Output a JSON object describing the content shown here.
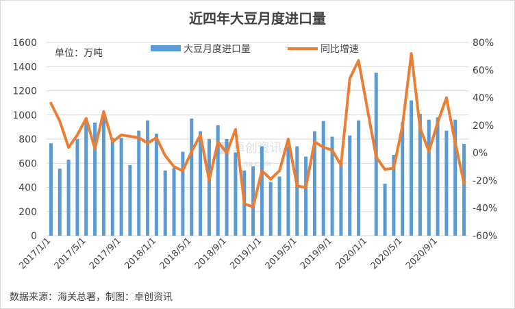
{
  "chart_data": {
    "type": "bar+line",
    "title": "近四年大豆月度进口量",
    "unit_label": "单位：万吨",
    "source": "数据来源：海关总署，制图：卓创资讯",
    "watermark": "卓创资讯",
    "watermark_sub": "SCI99.COM",
    "colors": {
      "bar": "#5b9bd5",
      "line": "#ed7d31"
    },
    "ylim_left": [
      0,
      1600
    ],
    "yticks_left": [
      "0",
      "200",
      "400",
      "600",
      "800",
      "1000",
      "1200",
      "1400",
      "1600"
    ],
    "ylim_right": [
      -60,
      80
    ],
    "yticks_right": [
      "-60%",
      "-40%",
      "-20%",
      "0%",
      "20%",
      "40%",
      "60%",
      "80%"
    ],
    "x_tick_labels": [
      {
        "index": 0,
        "label": "2017/1/1"
      },
      {
        "index": 4,
        "label": "2017/5/1"
      },
      {
        "index": 8,
        "label": "2017/9/1"
      },
      {
        "index": 12,
        "label": "2018/1/1"
      },
      {
        "index": 16,
        "label": "2018/5/1"
      },
      {
        "index": 20,
        "label": "2018/9/1"
      },
      {
        "index": 24,
        "label": "2019/1/1"
      },
      {
        "index": 28,
        "label": "2019/5/1"
      },
      {
        "index": 32,
        "label": "2019/9/1"
      },
      {
        "index": 36,
        "label": "2020/1/1"
      },
      {
        "index": 40,
        "label": "2020/5/1"
      },
      {
        "index": 44,
        "label": "2020/9/1"
      }
    ],
    "legend": {
      "bar": "大豆月度进口量",
      "line": "同比增速"
    },
    "x": [
      "2017/1",
      "2017/2",
      "2017/3",
      "2017/4",
      "2017/5",
      "2017/6",
      "2017/7",
      "2017/8",
      "2017/9",
      "2017/10",
      "2017/11",
      "2017/12",
      "2018/1",
      "2018/2",
      "2018/3",
      "2018/4",
      "2018/5",
      "2018/6",
      "2018/7",
      "2018/8",
      "2018/9",
      "2018/10",
      "2018/11",
      "2018/12",
      "2019/1",
      "2019/2",
      "2019/3",
      "2019/4",
      "2019/5",
      "2019/6",
      "2019/7",
      "2019/8",
      "2019/9",
      "2019/10",
      "2019/11",
      "2019/12",
      "2020/1",
      "2020/2",
      "2020/3",
      "2020/4",
      "2020/5",
      "2020/6",
      "2020/7",
      "2020/8",
      "2020/9",
      "2020/10",
      "2020/11",
      "2020/12"
    ],
    "series": [
      {
        "name": "大豆月度进口量",
        "type": "bar",
        "axis": "left",
        "values": [
          765,
          555,
          630,
          802,
          958,
          937,
          1009,
          810,
          810,
          585,
          870,
          955,
          845,
          540,
          560,
          695,
          970,
          865,
          800,
          915,
          800,
          690,
          540,
          575,
          740,
          445,
          490,
          740,
          740,
          655,
          865,
          950,
          820,
          600,
          830,
          955,
          null,
          1350,
          430,
          670,
          940,
          1120,
          1010,
          960,
          980,
          870,
          960,
          760
        ]
      },
      {
        "name": "同比增速",
        "type": "line",
        "axis": "right",
        "values": [
          36,
          23,
          4,
          13,
          25,
          3,
          30,
          8,
          13,
          12,
          11,
          7,
          11,
          -2,
          -10,
          -13,
          1,
          13,
          -20,
          8,
          0,
          17,
          -37,
          -39,
          -13,
          -19,
          -13,
          10,
          -24,
          -25,
          8,
          4,
          2,
          -9,
          54,
          67,
          32,
          -3,
          -12,
          -11,
          20,
          72,
          18,
          1,
          22,
          40,
          7,
          -22
        ]
      }
    ]
  }
}
